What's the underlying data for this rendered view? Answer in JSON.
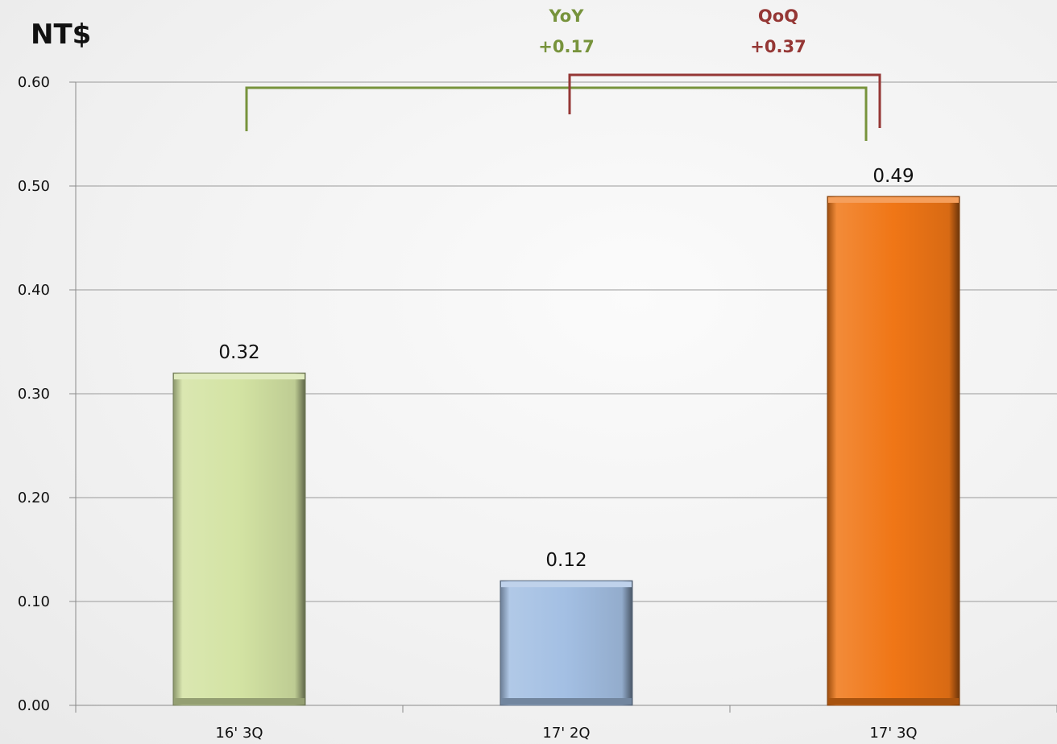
{
  "chart_data": {
    "type": "bar",
    "unit_label": "NT$",
    "categories": [
      "16' 3Q",
      "17' 2Q",
      "17' 3Q"
    ],
    "values": [
      0.32,
      0.12,
      0.49
    ],
    "data_labels": [
      "0.32",
      "0.12",
      "0.49"
    ],
    "bar_colors": [
      "#d3e3a3",
      "#a3bfe3",
      "#f07616"
    ],
    "ylim": [
      0,
      0.6
    ],
    "yticks": [
      0.0,
      0.1,
      0.2,
      0.3,
      0.4,
      0.5,
      0.6
    ],
    "ytick_labels": [
      "0.00",
      "0.10",
      "0.20",
      "0.30",
      "0.40",
      "0.50",
      "0.60"
    ],
    "grid": true,
    "annotations": [
      {
        "label": "YoY",
        "value_text": "+0.17",
        "from_category": "16' 3Q",
        "to_category": "17' 3Q",
        "color": "#77933c"
      },
      {
        "label": "QoQ",
        "value_text": "+0.37",
        "from_category": "17' 2Q",
        "to_category": "17' 3Q",
        "color": "#953735"
      }
    ]
  }
}
